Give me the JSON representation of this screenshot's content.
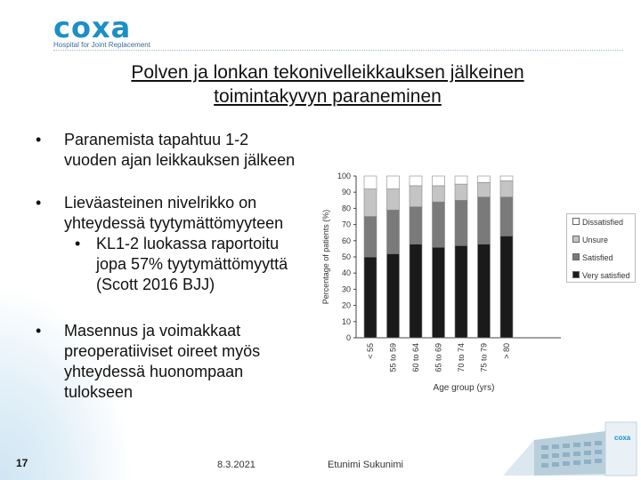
{
  "logo": {
    "text": "coxa",
    "subtitle": "Hospital for Joint Replacement"
  },
  "title": [
    "Polven ja lonkan tekonivelleikkauksen jälkeinen",
    "toimintakyvyn paraneminen"
  ],
  "bullets": [
    {
      "lines": [
        "Paranemista tapahtuu 1-2",
        "vuoden ajan leikkauksen jälkeen"
      ]
    },
    {
      "lines": [
        "Lieväasteinen nivelrikko on",
        "yhteydessä tyytymättömyyteen"
      ]
    },
    {
      "sub": true,
      "lines": [
        "KL1-2 luokassa raportoitu",
        "jopa 57% tyytymättömyyttä",
        "(Scott 2016 BJJ)"
      ]
    },
    {
      "lines": [
        "Masennus ja voimakkaat",
        "preoperatiiviset oireet myös",
        "yhteydessä huonompaan",
        "tulokseen"
      ]
    }
  ],
  "footer": {
    "slide_number": "17",
    "date": "8.3.2021",
    "author": "Etunimi Sukunimi"
  },
  "chart_data": {
    "type": "bar",
    "stacked": true,
    "categories": [
      "< 55",
      "55 to 59",
      "60 to 64",
      "65 to 69",
      "70 to 74",
      "75 to 79",
      "> 80"
    ],
    "series": [
      {
        "name": "Very satisfied",
        "color": "#1a1a1a",
        "values": [
          50,
          52,
          58,
          56,
          57,
          58,
          63
        ]
      },
      {
        "name": "Satisfied",
        "color": "#7a7a7a",
        "values": [
          25,
          27,
          23,
          28,
          28,
          29,
          24
        ]
      },
      {
        "name": "Unsure",
        "color": "#c4c4c4",
        "values": [
          17,
          13,
          13,
          10,
          10,
          9,
          10
        ]
      },
      {
        "name": "Dissatisfied",
        "color": "#ffffff",
        "values": [
          8,
          8,
          6,
          6,
          5,
          4,
          3
        ]
      }
    ],
    "ylabel": "Percentage of patients (%)",
    "xlabel": "Age group (yrs)",
    "ylim": [
      0,
      100
    ],
    "yticks": [
      0,
      10,
      20,
      30,
      40,
      50,
      60,
      70,
      80,
      90,
      100
    ],
    "legend": [
      "Dissatisfied",
      "Unsure",
      "Satisfied",
      "Very satisfied"
    ],
    "legend_position": "right"
  }
}
